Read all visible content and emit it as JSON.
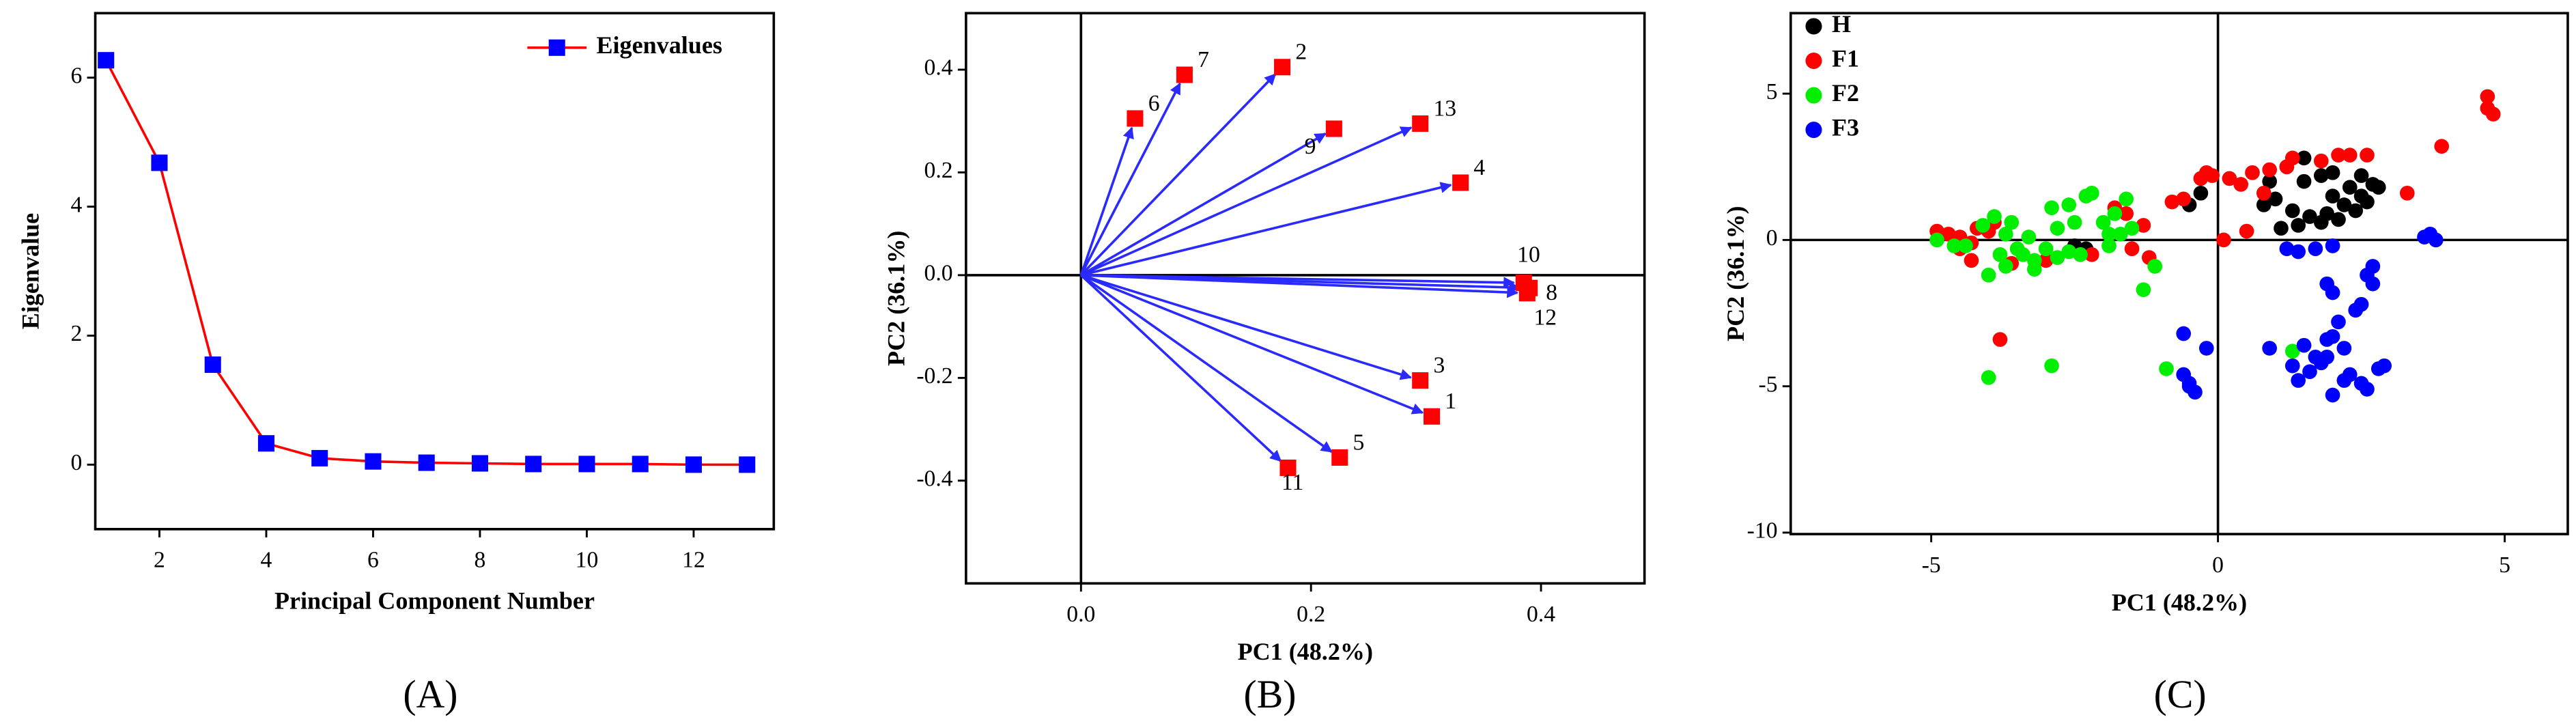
{
  "chart_data": [
    {
      "type": "line",
      "xlabel": "Principal Component Number",
      "ylabel": "Eigenvalue",
      "panel_label": "(A)",
      "x": [
        1,
        2,
        3,
        4,
        5,
        6,
        7,
        8,
        9,
        10,
        11,
        12,
        13
      ],
      "series": [
        {
          "name": "Eigenvalues",
          "color": "#ff0000",
          "marker_color": "#0000ff",
          "values": [
            6.27,
            4.68,
            1.55,
            0.33,
            0.1,
            0.05,
            0.03,
            0.02,
            0.01,
            0.01,
            0.01,
            0.0,
            0.0
          ]
        }
      ],
      "xlim": [
        0.8,
        13.5
      ],
      "ylim": [
        -1,
        7
      ],
      "xticks": [
        2,
        4,
        6,
        8,
        10,
        12
      ],
      "yticks": [
        0,
        2,
        4,
        6
      ],
      "legend": "upper right"
    },
    {
      "type": "biplot",
      "xlabel": "PC1 (48.2%)",
      "ylabel": "PC2 (36.1%)",
      "panel_label": "(B)",
      "labels": [
        "1",
        "2",
        "3",
        "4",
        "5",
        "6",
        "7",
        "8",
        "9",
        "10",
        "11",
        "12",
        "13"
      ],
      "x": [
        0.305,
        0.175,
        0.295,
        0.33,
        0.225,
        0.047,
        0.09,
        0.39,
        0.22,
        0.385,
        0.18,
        0.388,
        0.295
      ],
      "y": [
        -0.275,
        0.405,
        -0.205,
        0.18,
        -0.355,
        0.305,
        0.39,
        -0.025,
        0.285,
        -0.015,
        -0.375,
        -0.035,
        0.295
      ],
      "point_color": "#ff0000",
      "arrow_color": "#2a2aff",
      "xlim": [
        -0.1,
        0.49
      ],
      "ylim": [
        -0.6,
        0.51
      ],
      "xticks": [
        {
          "value": 0,
          "label": "0.0"
        },
        0.2,
        0.4
      ],
      "yticks": [
        -0.4,
        -0.2,
        {
          "value": 0,
          "label": "0.0"
        },
        0.2,
        0.4
      ],
      "zero_lines": true
    },
    {
      "type": "scatter",
      "xlabel": "PC1 (48.2%)",
      "ylabel": "PC2 (36.1%)",
      "panel_label": "(C)",
      "series": [
        {
          "name": "H",
          "color": "#000000",
          "x": [
            1.2,
            1.5,
            1.8,
            2.0,
            2.3,
            2.5,
            2.7,
            1.0,
            1.3,
            1.6,
            1.9,
            2.2,
            2.5,
            2.8,
            1.1,
            1.4,
            1.8,
            2.1,
            2.4,
            0.8,
            -0.3,
            -0.5,
            -2.3,
            -2.5,
            1.5,
            2.0,
            2.6,
            0.9
          ],
          "y": [
            2.5,
            2.8,
            2.2,
            1.5,
            1.8,
            2.2,
            1.9,
            1.4,
            1.0,
            0.8,
            0.9,
            1.2,
            1.5,
            1.8,
            0.4,
            0.5,
            0.6,
            0.7,
            1.0,
            1.2,
            1.6,
            1.2,
            -0.3,
            -0.2,
            2.0,
            2.3,
            1.3,
            2.0
          ]
        },
        {
          "name": "F1",
          "color": "#ff0000",
          "x": [
            4.7,
            4.7,
            4.8,
            3.9,
            3.3,
            2.1,
            2.3,
            2.6,
            1.3,
            0.9,
            0.6,
            0.2,
            0.4,
            -0.2,
            -0.3,
            -0.1,
            -0.6,
            -0.8,
            0.1,
            0.5,
            0.8,
            -4.9,
            -4.7,
            -4.5,
            -4.3,
            -4.0,
            -3.9,
            -4.2,
            -4.5,
            -4.3,
            -3.6,
            -3.0,
            -2.2,
            -1.5,
            -1.3,
            -1.6,
            -1.8,
            -1.2,
            -3.8,
            1.2,
            1.8
          ],
          "y": [
            4.9,
            4.5,
            4.3,
            3.2,
            1.6,
            2.9,
            2.9,
            2.9,
            2.8,
            2.4,
            2.3,
            2.1,
            1.9,
            2.3,
            2.1,
            2.2,
            1.4,
            1.3,
            0.0,
            0.3,
            1.6,
            0.3,
            0.2,
            0.1,
            -0.1,
            0.3,
            0.6,
            0.4,
            -0.3,
            -0.7,
            -0.8,
            -0.7,
            -0.5,
            -0.3,
            0.5,
            0.9,
            1.1,
            -0.6,
            -3.4,
            2.5,
            2.7
          ]
        },
        {
          "name": "F2",
          "color": "#00ee00",
          "x": [
            -4.9,
            -4.6,
            -4.4,
            -4.1,
            -3.9,
            -3.7,
            -3.5,
            -3.8,
            -4.0,
            -3.7,
            -3.4,
            -3.2,
            -3.0,
            -2.8,
            -2.6,
            -2.4,
            -3.2,
            -2.9,
            -2.6,
            -2.3,
            -2.2,
            -2.0,
            -1.8,
            -1.6,
            -1.5,
            -1.7,
            -2.8,
            -3.3,
            -1.9,
            -1.1,
            -1.3,
            -4.0,
            -2.9,
            -0.9,
            1.3,
            -1.9,
            -2.5,
            -3.6
          ],
          "y": [
            0.0,
            -0.2,
            -0.2,
            0.5,
            0.8,
            0.2,
            -0.3,
            -0.5,
            -1.2,
            -0.9,
            -0.5,
            -0.7,
            -0.3,
            -0.6,
            -0.4,
            -0.5,
            -1.0,
            1.1,
            1.2,
            1.5,
            1.6,
            0.6,
            0.9,
            1.4,
            0.4,
            0.2,
            0.4,
            0.1,
            -0.2,
            -0.9,
            -1.7,
            -4.7,
            -4.3,
            -4.4,
            -3.8,
            0.2,
            0.6,
            0.6
          ]
        },
        {
          "name": "F3",
          "color": "#0000ff",
          "x": [
            -0.6,
            -0.6,
            -0.5,
            -0.4,
            -0.5,
            -0.2,
            0.9,
            1.3,
            1.4,
            1.6,
            1.8,
            1.9,
            2.0,
            2.2,
            2.3,
            2.5,
            2.6,
            2.8,
            2.9,
            1.7,
            1.9,
            2.0,
            2.1,
            1.9,
            2.0,
            2.4,
            2.5,
            2.7,
            2.6,
            2.7,
            1.2,
            1.4,
            1.7,
            2.0,
            3.6,
            3.7,
            3.8,
            2.2,
            1.5
          ],
          "y": [
            -3.2,
            -4.6,
            -5.0,
            -5.2,
            -4.9,
            -3.7,
            -3.7,
            -4.3,
            -4.8,
            -4.5,
            -4.2,
            -4.0,
            -5.3,
            -4.8,
            -4.6,
            -4.9,
            -5.1,
            -4.4,
            -4.3,
            -4.0,
            -3.4,
            -3.3,
            -2.8,
            -1.5,
            -1.8,
            -2.4,
            -2.2,
            -1.5,
            -1.2,
            -0.9,
            -0.3,
            -0.4,
            -0.3,
            -0.2,
            0.1,
            0.2,
            0.0,
            -3.7,
            -3.6
          ]
        }
      ],
      "xlim": [
        -7.45,
        6.1
      ],
      "ylim": [
        -10.05,
        7.75
      ],
      "xticks": [
        -5,
        0,
        5
      ],
      "yticks": [
        -10,
        -5,
        0,
        5
      ],
      "zero_lines": true,
      "legend": "upper left"
    }
  ]
}
